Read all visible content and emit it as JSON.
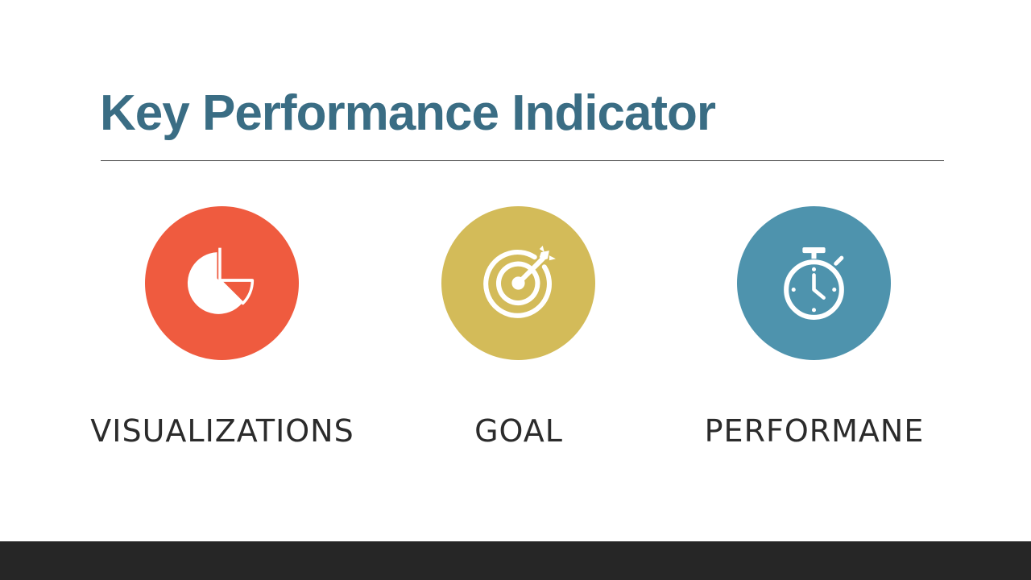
{
  "slide": {
    "title": "Key Performance Indicator",
    "colors": {
      "title": "#3a6d84",
      "rule": "#3c3c3c",
      "footer": "#262626",
      "label": "#2b2b2b"
    }
  },
  "kpis": [
    {
      "label": "VISUALIZATIONS",
      "icon": "pie-chart-icon",
      "color": "#ef5b3f"
    },
    {
      "label": "GOAL",
      "icon": "target-icon",
      "color": "#d3bb59"
    },
    {
      "label": "PERFORMANE",
      "icon": "stopwatch-icon",
      "color": "#4e93ad"
    }
  ]
}
